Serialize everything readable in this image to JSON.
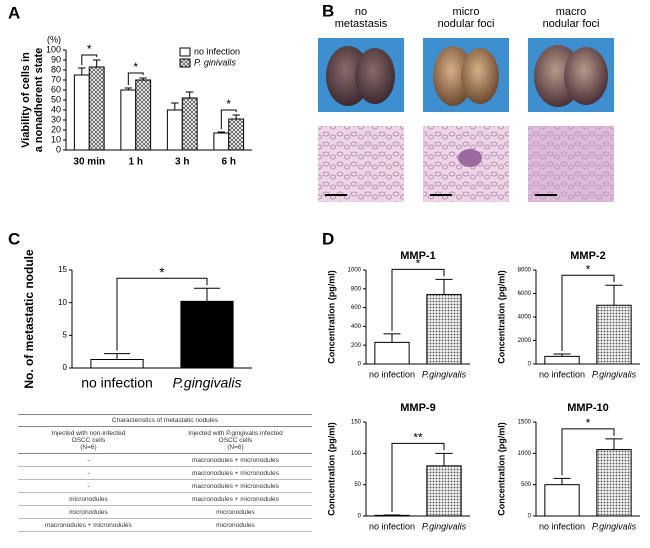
{
  "panel_labels": [
    "A",
    "B",
    "C",
    "D"
  ],
  "images": {
    "columns": [
      [
        "no",
        "metastasis"
      ],
      [
        "micro",
        "nodular foci"
      ],
      [
        "macro",
        "nodular foci"
      ]
    ]
  },
  "chart_data": [
    {
      "type": "bar",
      "y_unit": "(%)",
      "y_label": [
        "Viability of cells in",
        "a nonadherent state"
      ],
      "categories": [
        "30 min",
        "1 h",
        "3 h",
        "6 h"
      ],
      "series": [
        {
          "name": "no infection",
          "color": "#ffffff",
          "values": [
            75,
            60,
            40,
            17
          ],
          "errors": [
            7,
            2,
            7,
            1
          ]
        },
        {
          "name": "P. ginivalis",
          "color": "#555555",
          "pattern": "crosshatch",
          "values": [
            83,
            70,
            52,
            31
          ],
          "errors": [
            7,
            2,
            6,
            4
          ]
        }
      ],
      "significance": [
        "*",
        "*",
        null,
        "*"
      ],
      "ylim": [
        0,
        100
      ],
      "yticks": [
        0,
        10,
        20,
        30,
        40,
        50,
        60,
        70,
        80,
        90,
        100
      ],
      "legend": "top-right"
    },
    {
      "type": "bar",
      "y_label": [
        "No. of metastatic nodule"
      ],
      "categories": [
        "no infection",
        "P.gingivalis"
      ],
      "values": [
        1.3,
        10.2
      ],
      "errors": [
        0.9,
        2.0
      ],
      "colors": [
        "#ffffff",
        "#000000"
      ],
      "significance": "*",
      "ylim": [
        0,
        15
      ],
      "yticks": [
        0,
        5,
        10,
        15
      ]
    },
    {
      "type": "bar",
      "title": "MMP-1",
      "y_label": [
        "Concentration (pg/ml)"
      ],
      "categories": [
        "no infection",
        "P.gingivalis"
      ],
      "values": [
        230,
        740
      ],
      "errors": [
        90,
        160
      ],
      "colors": [
        "#ffffff",
        "#555555"
      ],
      "bar_patterns": [
        null,
        "dots"
      ],
      "significance": "*",
      "ylim": [
        0,
        1000
      ],
      "yticks": [
        0,
        200,
        400,
        600,
        800,
        1000
      ]
    },
    {
      "type": "bar",
      "title": "MMP-2",
      "y_label": [
        "Concentration (pg/ml)"
      ],
      "categories": [
        "no infection",
        "P.gingivalis"
      ],
      "values": [
        650,
        5000
      ],
      "errors": [
        200,
        1700
      ],
      "colors": [
        "#ffffff",
        "#555555"
      ],
      "bar_patterns": [
        null,
        "dots"
      ],
      "significance": "*",
      "ylim": [
        0,
        8000
      ],
      "yticks": [
        0,
        2000,
        4000,
        6000,
        8000
      ]
    },
    {
      "type": "bar",
      "title": "MMP-9",
      "y_label": [
        "Concentration (pg/ml)"
      ],
      "categories": [
        "no infection",
        "P.gingivalis"
      ],
      "values": [
        1,
        80
      ],
      "errors": [
        0.5,
        20
      ],
      "colors": [
        "#ffffff",
        "#555555"
      ],
      "bar_patterns": [
        null,
        "dots"
      ],
      "significance": "**",
      "ylim": [
        0,
        150
      ],
      "yticks": [
        0,
        50,
        100,
        150
      ]
    },
    {
      "type": "bar",
      "title": "MMP-10",
      "y_label": [
        "Concentration (pg/ml)"
      ],
      "categories": [
        "no infection",
        "P.gingivalis"
      ],
      "values": [
        500,
        1060
      ],
      "errors": [
        100,
        170
      ],
      "colors": [
        "#ffffff",
        "#555555"
      ],
      "bar_patterns": [
        null,
        "dots"
      ],
      "significance": "*",
      "ylim": [
        0,
        1500
      ],
      "yticks": [
        0,
        500,
        1000,
        1500
      ]
    }
  ],
  "table": {
    "title": "Characteristics of metastatic nodules",
    "header": [
      [
        "Injected with non-infected",
        "OSCC cells",
        "(N=6)"
      ],
      [
        "Injected with P.gingivalis infected",
        "OSCC cells",
        "(N=6)"
      ]
    ],
    "rows": [
      [
        "-",
        "macronodules + micronodules"
      ],
      [
        "-",
        "macronodules + micronodules"
      ],
      [
        "-",
        "macronodules + micronodules"
      ],
      [
        "micronodules",
        "macronodules + micronodules"
      ],
      [
        "micronodules",
        "micronodules"
      ],
      [
        "macronodules + micronodules",
        "micronodules"
      ]
    ]
  }
}
